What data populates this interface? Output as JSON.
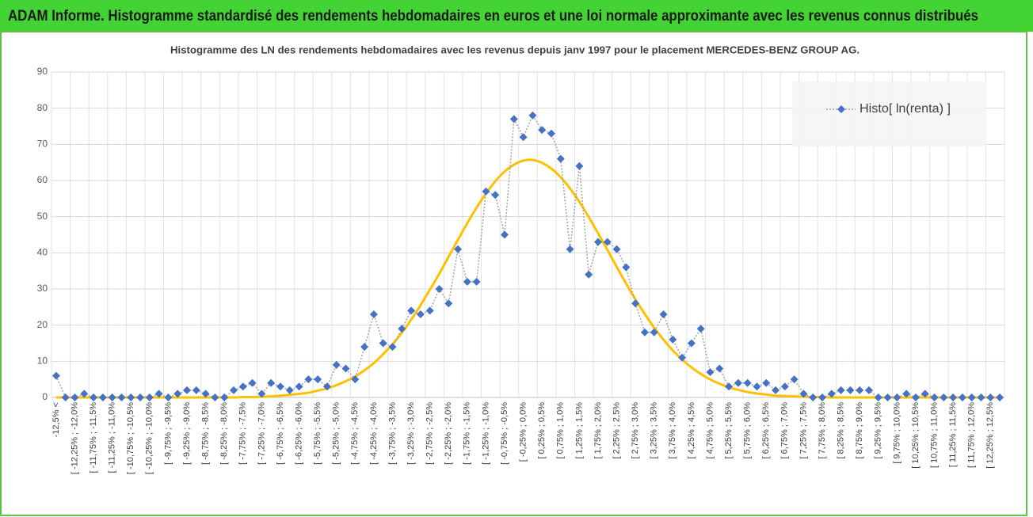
{
  "header": {
    "title": "ADAM Informe. Histogramme standardisé des rendements hebdomadaires en euros et une loi normale approximante avec les revenus connus distribués"
  },
  "chart_data": {
    "type": "line",
    "title": "Histogramme des LN des rendements hebdomadaires avec les revenus depuis janv 1997 pour le placement MERCEDES-BENZ GROUP AG.",
    "categories": [
      "-12,5% <",
      null,
      "[ -12,25% ; -12,0%",
      null,
      "[ -11,75% ; -11,5%",
      null,
      "[ -11,25% ; -11,0%",
      null,
      "[ -10,75% ; -10,5%",
      null,
      "[ -10,25% ; -10,0%",
      null,
      "[ -9,75% ; -9,5%",
      null,
      "[ -9,25% ; -9,0%",
      null,
      "[ -8,75% ; -8,5%",
      null,
      "[ -8,25% ; -8,0%",
      null,
      "[ -7,75% ; -7,5%",
      null,
      "[ -7,25% ; -7,0%",
      null,
      "[ -6,75% ; -6,5%",
      null,
      "[ -6,25% ; -6,0%",
      null,
      "[ -5,75% ; -5,5%",
      null,
      "[ -5,25% ; -5,0%",
      null,
      "[ -4,75% ; -4,5%",
      null,
      "[ -4,25% ; -4,0%",
      null,
      "[ -3,75% ; -3,5%",
      null,
      "[ -3,25% ; -3,0%",
      null,
      "[ -2,75% ; -2,5%",
      null,
      "[ -2,25% ; -2,0%",
      null,
      "[ -1,75% ; -1,5%",
      null,
      "[ -1,25% ; -1,0%",
      null,
      "[ -0,75% ; -0,5%",
      null,
      "[ -0,25% ; 0,0%",
      null,
      "[ 0,25% ; 0,5%",
      null,
      "[ 0,75% ; 1,0%",
      null,
      "[ 1,25% ; 1,5%",
      null,
      "[ 1,75% ; 2,0%",
      null,
      "[ 2,25% ; 2,5%",
      null,
      "[ 2,75% ; 3,0%",
      null,
      "[ 3,25% ; 3,5%",
      null,
      "[ 3,75% ; 4,0%",
      null,
      "[ 4,25% ; 4,5%",
      null,
      "[ 4,75% ; 5,0%",
      null,
      "[ 5,25% ; 5,5%",
      null,
      "[ 5,75% ; 6,0%",
      null,
      "[ 6,25% ; 6,5%",
      null,
      "[ 6,75% ; 7,0%",
      null,
      "[ 7,25% ; 7,5%",
      null,
      "[ 7,75% ; 8,0%",
      null,
      "[ 8,25% ; 8,5%",
      null,
      "[ 8,75% ; 9,0%",
      null,
      "[ 9,25% ; 9,5%",
      null,
      "[ 9,75% ; 10,0%",
      null,
      "[ 10,25% ; 10,5%",
      null,
      "[ 10,75% ; 11,0%",
      null,
      "[ 11,25% ; 11,5%",
      null,
      "[ 11,75% ; 12,0%",
      null,
      "[ 12,25% ; 12,5%",
      null
    ],
    "series": [
      {
        "name": "Histo[ ln(renta) ]",
        "color": "#4472c4",
        "line_color": "#a5a5a5",
        "marker": "diamond",
        "values": [
          6,
          0,
          0,
          1,
          0,
          0,
          0,
          0,
          0,
          0,
          0,
          1,
          0,
          1,
          2,
          2,
          1,
          0,
          0,
          2,
          3,
          4,
          1,
          4,
          3,
          2,
          3,
          5,
          5,
          3,
          9,
          8,
          5,
          14,
          23,
          15,
          14,
          19,
          24,
          23,
          24,
          30,
          26,
          41,
          32,
          32,
          57,
          56,
          45,
          77,
          72,
          78,
          74,
          73,
          66,
          41,
          64,
          34,
          43,
          43,
          41,
          36,
          26,
          18,
          18,
          23,
          16,
          11,
          15,
          19,
          7,
          8,
          3,
          4,
          4,
          3,
          4,
          2,
          3,
          5,
          1,
          0,
          0,
          1,
          2,
          2,
          2,
          2,
          0,
          0,
          0,
          1,
          0,
          1,
          0,
          0,
          0,
          0,
          0,
          0,
          0,
          0
        ]
      },
      {
        "color": "#ffc000",
        "smooth": true,
        "values": [
          0,
          0,
          0,
          0,
          0,
          0,
          0,
          0,
          0,
          0,
          0,
          0,
          0,
          0,
          0,
          0,
          0,
          0,
          0,
          0,
          0.1,
          0.1,
          0.2,
          0.3,
          0.5,
          0.7,
          1.0,
          1.3,
          1.9,
          2.5,
          3.4,
          4.5,
          5.8,
          7.5,
          9.5,
          12.0,
          14.7,
          17.9,
          21.5,
          25.5,
          29.8,
          34.2,
          38.9,
          43.6,
          48.2,
          52.5,
          56.4,
          59.8,
          62.5,
          64.4,
          65.5,
          65.7,
          64.9,
          63.3,
          60.9,
          57.8,
          54.1,
          49.9,
          45.4,
          40.8,
          36.1,
          31.5,
          27.1,
          23.1,
          19.3,
          16.0,
          13.0,
          10.5,
          8.3,
          6.5,
          5.0,
          3.8,
          2.8,
          2.1,
          1.5,
          1.1,
          0.8,
          0.5,
          0.4,
          0.3,
          0.2,
          0.1,
          0.1,
          0,
          0,
          0,
          0,
          0,
          0,
          0,
          0,
          0,
          0,
          0,
          0,
          0,
          0,
          0,
          0,
          0,
          0,
          0
        ]
      }
    ],
    "ylim": [
      0,
      90
    ],
    "yticks": [
      0,
      10,
      20,
      30,
      40,
      50,
      60,
      70,
      80,
      90
    ],
    "grid": true,
    "legend": "upper right"
  }
}
